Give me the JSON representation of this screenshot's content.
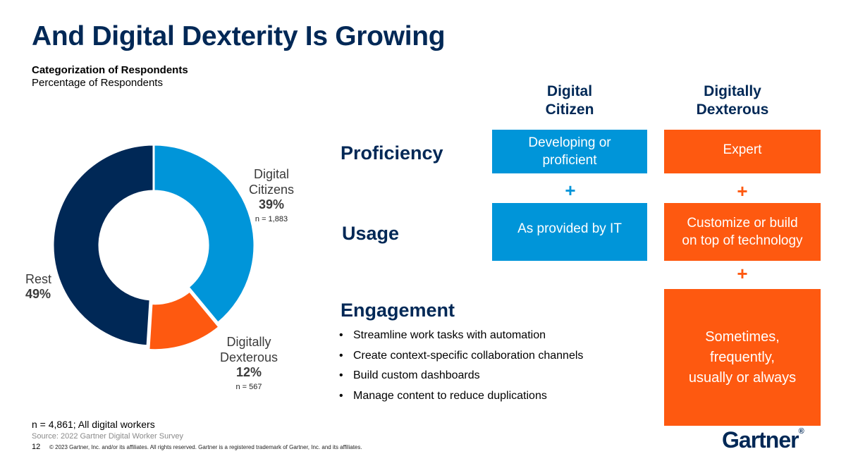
{
  "title": "And Digital Dexterity Is Growing",
  "subtitle_line1": "Categorization of Respondents",
  "subtitle_line2": "Percentage of Respondents",
  "chart_data": {
    "type": "pie",
    "title": "Categorization of Respondents",
    "subtitle": "Percentage of Respondents",
    "slices": [
      {
        "label_line1": "Digital",
        "label_line2": "Citizens",
        "value": 39,
        "pct_label": "39%",
        "n_label": "n = 1,883",
        "color": "#0095d9"
      },
      {
        "label_line1": "Digitally",
        "label_line2": "Dexterous",
        "value": 12,
        "pct_label": "12%",
        "n_label": "n = 567",
        "color": "#fe5910"
      },
      {
        "label_line1": "Rest",
        "label_line2": "",
        "value": 49,
        "pct_label": "49%",
        "n_label": "",
        "color": "#002856"
      }
    ]
  },
  "columns": {
    "citizen": {
      "line1": "Digital",
      "line2": "Citizen"
    },
    "dexterous": {
      "line1": "Digitally",
      "line2": "Dexterous"
    }
  },
  "rows": {
    "proficiency": {
      "label": "Proficiency",
      "citizen_line1": "Developing or",
      "citizen_line2": "proficient",
      "dexterous": "Expert"
    },
    "usage": {
      "label": "Usage",
      "citizen": "As provided by IT",
      "dexterous_line1": "Customize or build",
      "dexterous_line2": "on top of technology"
    },
    "engagement": {
      "label": "Engagement",
      "items": [
        "Streamline work tasks with automation",
        "Create context-specific collaboration channels",
        "Build custom dashboards",
        "Manage content to reduce duplications"
      ],
      "dexterous_line1": "Sometimes,",
      "dexterous_line2": "frequently,",
      "dexterous_line3": "usually or always"
    }
  },
  "plus_sign": "+",
  "bullet": "•",
  "footnote": "n = 4,861; All digital workers",
  "source": "Source: 2022 Gartner Digital Worker Survey",
  "page_number": "12",
  "copyright": "© 2023 Gartner, Inc. and/or its affiliates. All rights reserved. Gartner is a registered trademark of Gartner, Inc. and its affiliates.",
  "logo": {
    "text": "Gartner",
    "mark": "®"
  },
  "colors": {
    "navy": "#002856",
    "blue": "#0095d9",
    "orange": "#fe5910"
  }
}
